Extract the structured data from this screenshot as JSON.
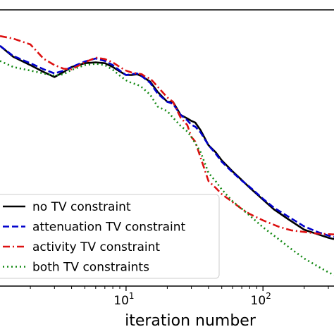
{
  "chart_data": {
    "type": "line",
    "xscale": "log",
    "xlim": [
      1.2,
      330
    ],
    "ylim_fraction": [
      0,
      1
    ],
    "xlabel": "iteration number",
    "ylabel": "",
    "title": "",
    "grid": false,
    "legend_position": "lower-left",
    "x_ticks": [
      {
        "value": 10,
        "label": "10",
        "exp": "1"
      },
      {
        "value": 100,
        "label": "10",
        "exp": "2"
      }
    ],
    "series": [
      {
        "name": "no TV constraint",
        "color": "#000000",
        "dash": "solid",
        "points": [
          [
            1.2,
            0.87
          ],
          [
            1.5,
            0.83
          ],
          [
            2,
            0.8
          ],
          [
            2.5,
            0.775
          ],
          [
            3,
            0.757
          ],
          [
            3.5,
            0.775
          ],
          [
            4,
            0.793
          ],
          [
            5,
            0.807
          ],
          [
            6,
            0.81
          ],
          [
            7,
            0.807
          ],
          [
            8,
            0.793
          ],
          [
            9,
            0.777
          ],
          [
            10,
            0.764
          ],
          [
            11,
            0.764
          ],
          [
            12,
            0.767
          ],
          [
            13,
            0.76
          ],
          [
            15,
            0.74
          ],
          [
            17,
            0.703
          ],
          [
            20,
            0.667
          ],
          [
            22,
            0.667
          ],
          [
            25,
            0.62
          ],
          [
            28,
            0.607
          ],
          [
            30,
            0.598
          ],
          [
            32,
            0.592
          ],
          [
            35,
            0.564
          ],
          [
            40,
            0.51
          ],
          [
            45,
            0.485
          ],
          [
            50,
            0.455
          ],
          [
            60,
            0.415
          ],
          [
            70,
            0.384
          ],
          [
            80,
            0.356
          ],
          [
            100,
            0.313
          ],
          [
            120,
            0.278
          ],
          [
            150,
            0.245
          ],
          [
            200,
            0.204
          ],
          [
            250,
            0.188
          ],
          [
            300,
            0.175
          ],
          [
            330,
            0.17
          ]
        ]
      },
      {
        "name": "attenuation TV constraint",
        "color": "#0000cc",
        "dash": "dashed",
        "points": [
          [
            1.2,
            0.87
          ],
          [
            1.5,
            0.833
          ],
          [
            2,
            0.807
          ],
          [
            2.5,
            0.785
          ],
          [
            3,
            0.77
          ],
          [
            3.5,
            0.78
          ],
          [
            4,
            0.793
          ],
          [
            5,
            0.813
          ],
          [
            6,
            0.824
          ],
          [
            7,
            0.815
          ],
          [
            8,
            0.8
          ],
          [
            9,
            0.78
          ],
          [
            10,
            0.764
          ],
          [
            11,
            0.767
          ],
          [
            12,
            0.77
          ],
          [
            13,
            0.76
          ],
          [
            15,
            0.736
          ],
          [
            17,
            0.697
          ],
          [
            20,
            0.667
          ],
          [
            22,
            0.66
          ],
          [
            25,
            0.62
          ],
          [
            28,
            0.6
          ],
          [
            30,
            0.584
          ],
          [
            32,
            0.577
          ],
          [
            35,
            0.556
          ],
          [
            40,
            0.51
          ],
          [
            45,
            0.48
          ],
          [
            50,
            0.45
          ],
          [
            60,
            0.412
          ],
          [
            70,
            0.382
          ],
          [
            80,
            0.359
          ],
          [
            100,
            0.316
          ],
          [
            120,
            0.284
          ],
          [
            150,
            0.254
          ],
          [
            200,
            0.216
          ],
          [
            250,
            0.196
          ],
          [
            300,
            0.183
          ],
          [
            330,
            0.178
          ]
        ]
      },
      {
        "name": "activity TV constraint",
        "color": "#dd1111",
        "dash": "dashdot",
        "points": [
          [
            1.2,
            0.905
          ],
          [
            1.5,
            0.896
          ],
          [
            2,
            0.875
          ],
          [
            2.5,
            0.823
          ],
          [
            3,
            0.8
          ],
          [
            3.5,
            0.787
          ],
          [
            4,
            0.785
          ],
          [
            5,
            0.81
          ],
          [
            6,
            0.827
          ],
          [
            7,
            0.822
          ],
          [
            8,
            0.81
          ],
          [
            9,
            0.793
          ],
          [
            10,
            0.78
          ],
          [
            11,
            0.773
          ],
          [
            12,
            0.77
          ],
          [
            13,
            0.767
          ],
          [
            14,
            0.756
          ],
          [
            15,
            0.752
          ],
          [
            17,
            0.722
          ],
          [
            20,
            0.683
          ],
          [
            22,
            0.667
          ],
          [
            25,
            0.61
          ],
          [
            28,
            0.583
          ],
          [
            30,
            0.54
          ],
          [
            32,
            0.523
          ],
          [
            35,
            0.465
          ],
          [
            40,
            0.38
          ],
          [
            45,
            0.356
          ],
          [
            50,
            0.333
          ],
          [
            60,
            0.304
          ],
          [
            70,
            0.279
          ],
          [
            80,
            0.261
          ],
          [
            100,
            0.238
          ],
          [
            130,
            0.215
          ],
          [
            160,
            0.202
          ],
          [
            200,
            0.196
          ],
          [
            250,
            0.19
          ],
          [
            300,
            0.188
          ],
          [
            330,
            0.187
          ]
        ]
      },
      {
        "name": "both TV constraints",
        "color": "#118811",
        "dash": "dotted",
        "points": [
          [
            1.2,
            0.815
          ],
          [
            1.5,
            0.793
          ],
          [
            2,
            0.78
          ],
          [
            2.5,
            0.77
          ],
          [
            3,
            0.762
          ],
          [
            3.5,
            0.767
          ],
          [
            4,
            0.783
          ],
          [
            5,
            0.8
          ],
          [
            6,
            0.805
          ],
          [
            7,
            0.8
          ],
          [
            8,
            0.783
          ],
          [
            9,
            0.762
          ],
          [
            10,
            0.745
          ],
          [
            11,
            0.735
          ],
          [
            12,
            0.73
          ],
          [
            13,
            0.72
          ],
          [
            15,
            0.693
          ],
          [
            17,
            0.65
          ],
          [
            20,
            0.633
          ],
          [
            22,
            0.61
          ],
          [
            25,
            0.58
          ],
          [
            28,
            0.56
          ],
          [
            30,
            0.54
          ],
          [
            32,
            0.517
          ],
          [
            35,
            0.485
          ],
          [
            40,
            0.41
          ],
          [
            45,
            0.38
          ],
          [
            50,
            0.35
          ],
          [
            60,
            0.307
          ],
          [
            70,
            0.28
          ],
          [
            80,
            0.255
          ],
          [
            100,
            0.213
          ],
          [
            130,
            0.17
          ],
          [
            160,
            0.135
          ],
          [
            200,
            0.1
          ],
          [
            250,
            0.072
          ],
          [
            300,
            0.05
          ],
          [
            330,
            0.04
          ]
        ]
      }
    ]
  }
}
